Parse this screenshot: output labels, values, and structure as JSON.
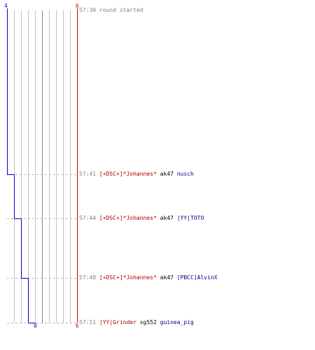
{
  "colors": {
    "team_left": "#0000cc",
    "team_right": "#cc0000",
    "grid": "#c0c0c0",
    "center_line": "#808080",
    "dash": "#b8b8b8",
    "time_text": "#808080",
    "killer_text": "#aa0000",
    "weapon_text": "#000000",
    "victim_text": "#000088"
  },
  "chart_data": {
    "type": "line",
    "axis_labels": {
      "top_left": "4",
      "top_right": "6",
      "bottom_center": "0",
      "bottom_right": "6"
    },
    "x_range": [
      0,
      10
    ],
    "y_time_range": [
      "57:30",
      "57:51"
    ],
    "series": [
      {
        "points": [
          {
            "time": "57:30",
            "x": 0
          },
          {
            "time": "57:41",
            "x": 1
          },
          {
            "time": "57:44",
            "x": 2
          },
          {
            "time": "57:48",
            "x": 3
          },
          {
            "time": "57:51",
            "x": 4
          }
        ]
      }
    ]
  },
  "events": [
    {
      "time": "57:30",
      "message": "round started"
    },
    {
      "time": "57:41",
      "killer": "[+DSC+]*Johannes*",
      "weapon": "ak47",
      "victim": "nusch"
    },
    {
      "time": "57:44",
      "killer": "[+DSC+]*Johannes*",
      "weapon": "ak47",
      "victim": "|YY|TOTO"
    },
    {
      "time": "57:48",
      "killer": "[+DSC+]*Johannes*",
      "weapon": "ak47",
      "victim": "[PBCC]AlvinX"
    },
    {
      "time": "57:51",
      "killer": "|YY|Grinder",
      "weapon": "sg552",
      "victim": "guinea_pig"
    }
  ]
}
